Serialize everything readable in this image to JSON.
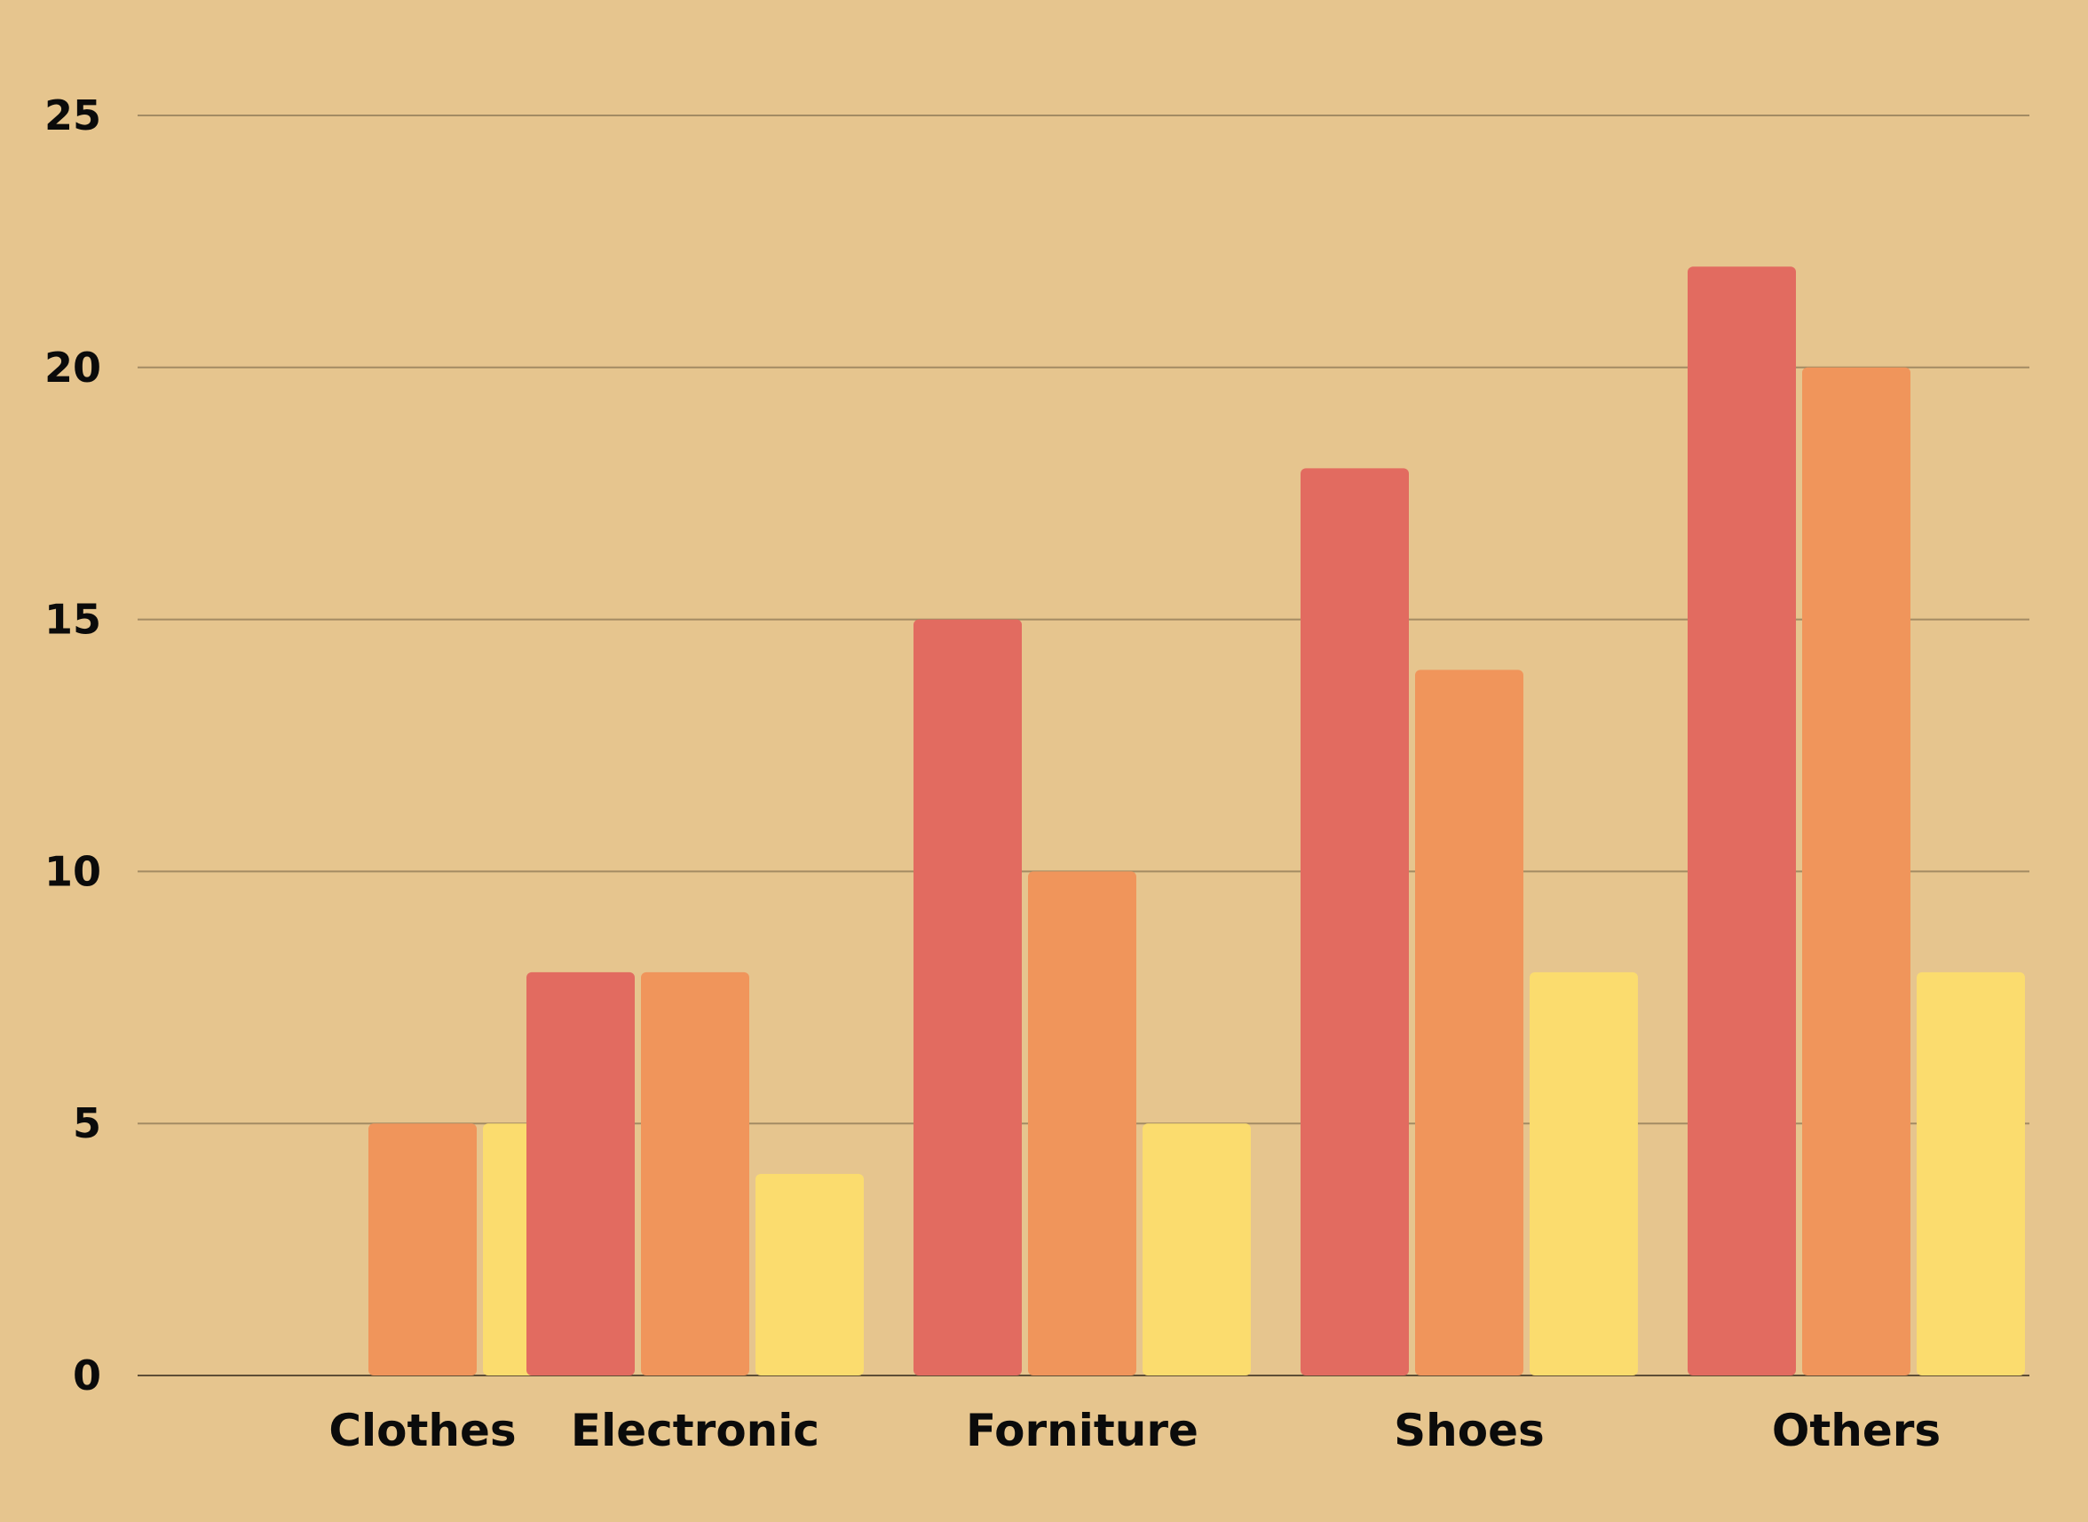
{
  "chart_data": {
    "type": "bar",
    "title": "",
    "xlabel": "",
    "ylabel": "",
    "categories": [
      "Clothes",
      "Electronic",
      "Forniture",
      "Shoes",
      "Others"
    ],
    "series": [
      {
        "color": "#E26B60",
        "values": [
          0,
          8,
          15,
          18,
          22
        ]
      },
      {
        "color": "#F0955B",
        "values": [
          5,
          8,
          10,
          14,
          20
        ]
      },
      {
        "color": "#FBDC6E",
        "values": [
          5,
          4,
          5,
          8,
          8
        ]
      }
    ],
    "ylim": [
      0,
      25
    ],
    "yticks": [
      "0",
      "5",
      "10",
      "15",
      "20",
      "25"
    ],
    "grid": true,
    "background": "#E6C58E",
    "gridline_color": "#A38B63"
  }
}
